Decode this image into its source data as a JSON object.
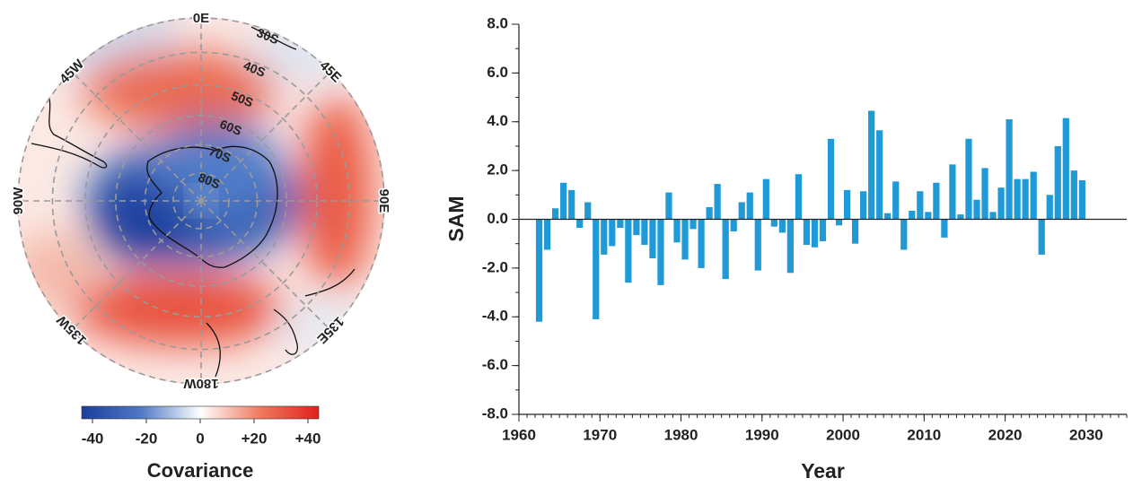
{
  "chart_data": [
    {
      "type": "map",
      "lon_ticks": [
        {
          "value": 0,
          "label": "0E"
        },
        {
          "value": 45,
          "label": "45E"
        },
        {
          "value": 90,
          "label": "90E"
        },
        {
          "value": 135,
          "label": "135E"
        },
        {
          "value": 180,
          "label": "180W"
        },
        {
          "value": -135,
          "label": "135W"
        },
        {
          "value": -90,
          "label": "90W"
        },
        {
          "value": -45,
          "label": "45W"
        }
      ],
      "lat_ticks": [
        {
          "value": -30,
          "label": "30S"
        },
        {
          "value": -40,
          "label": "40S"
        },
        {
          "value": -50,
          "label": "50S"
        },
        {
          "value": -60,
          "label": "60S"
        },
        {
          "value": -70,
          "label": "70S"
        },
        {
          "value": -80,
          "label": "80S"
        }
      ],
      "colorbar": {
        "label": "Covariance",
        "lim": [
          -44,
          44
        ],
        "ticks": [
          -40,
          -20,
          0,
          {
            "value": 20,
            "label": "+20"
          },
          {
            "value": 40,
            "label": "+40"
          }
        ],
        "colors": [
          "#1c3e9c",
          "#4f79c4",
          "#ffffff",
          "#ef7b60",
          "#e2201e"
        ]
      }
    },
    {
      "type": "bar",
      "xlabel": "Year",
      "ylabel": "SAM",
      "color": "#1f9ad6",
      "x": [
        1962,
        1963,
        1964,
        1965,
        1966,
        1967,
        1968,
        1969,
        1970,
        1971,
        1972,
        1973,
        1974,
        1975,
        1976,
        1977,
        1978,
        1979,
        1980,
        1981,
        1982,
        1983,
        1984,
        1985,
        1986,
        1987,
        1988,
        1989,
        1990,
        1991,
        1992,
        1993,
        1994,
        1995,
        1996,
        1997,
        1998,
        1999,
        2000,
        2001,
        2002,
        2003,
        2004,
        2005,
        2006,
        2007,
        2008,
        2009,
        2010,
        2011,
        2012,
        2013,
        2014,
        2015,
        2016,
        2017,
        2018,
        2019,
        2020,
        2021,
        2022,
        2023,
        2024,
        2025,
        2026,
        2027,
        2028,
        2029
      ],
      "values": [
        -4.2,
        -1.25,
        0.45,
        1.5,
        1.2,
        -0.35,
        0.7,
        -4.1,
        -1.45,
        -1.1,
        -0.35,
        -2.6,
        -0.65,
        -1.05,
        -1.6,
        -2.7,
        1.1,
        -0.95,
        -1.65,
        -0.4,
        -2.0,
        0.5,
        1.45,
        -2.45,
        -0.5,
        0.7,
        1.1,
        -2.1,
        1.65,
        -0.3,
        -0.55,
        -2.2,
        1.85,
        -1.05,
        -1.15,
        -0.9,
        3.3,
        -0.25,
        1.2,
        -1.0,
        1.15,
        4.45,
        3.65,
        0.25,
        1.55,
        -1.25,
        0.35,
        1.15,
        0.3,
        1.5,
        -0.75,
        2.25,
        0.2,
        3.3,
        0.8,
        2.1,
        0.3,
        1.3,
        4.1,
        1.65,
        1.65,
        1.95,
        -1.45,
        1.0,
        3.0,
        4.15,
        2.0,
        1.6
      ],
      "xlim": [
        1960,
        2035
      ],
      "ylim": [
        -8,
        8
      ],
      "xticks": [
        1960,
        1970,
        1980,
        1990,
        2000,
        2010,
        2020,
        2030
      ],
      "yticks": [
        {
          "value": 8,
          "label": "8.0"
        },
        {
          "value": 6,
          "label": "6.0"
        },
        {
          "value": 4,
          "label": "4.0"
        },
        {
          "value": 2,
          "label": "2.0"
        },
        {
          "value": 0,
          "label": "0.0"
        },
        {
          "value": -2,
          "label": "-2.0"
        },
        {
          "value": -4,
          "label": "-4.0"
        },
        {
          "value": -6,
          "label": "-6.0"
        },
        {
          "value": -8,
          "label": "-8.0"
        }
      ]
    }
  ]
}
